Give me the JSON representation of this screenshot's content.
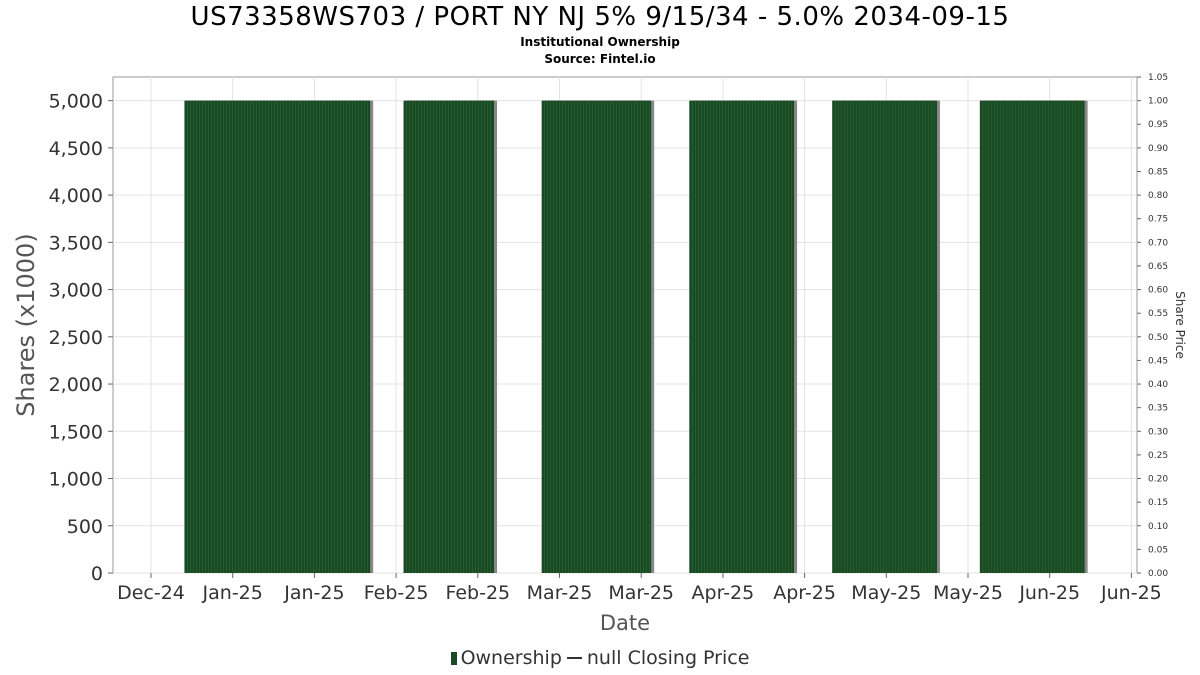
{
  "title": "US73358WS703 / PORT NY NJ 5% 9/15/34 - 5.0% 2034-09-15",
  "subtitle1": "Institutional Ownership",
  "subtitle2": "Source: Fintel.io",
  "legend": {
    "ownership": "Ownership",
    "closing_price": "null Closing Price"
  },
  "colors": {
    "bar_fill": "#1a4a24",
    "bar_stripe": "#2e6a38",
    "bar_shadow": "#888888",
    "grid": "#e3e3e3"
  },
  "chart_data": {
    "type": "bar",
    "xlabel": "Date",
    "ylabel": "Shares (x1000)",
    "y2label": "Share Price",
    "ylim": [
      0,
      5250
    ],
    "y2lim": [
      0,
      1.05
    ],
    "grid": true,
    "legend_position": "bottom",
    "x_ticks": [
      "Dec-24",
      "Jan-25",
      "Jan-25",
      "Feb-25",
      "Feb-25",
      "Mar-25",
      "Mar-25",
      "Apr-25",
      "Apr-25",
      "May-25",
      "May-25",
      "Jun-25",
      "Jun-25"
    ],
    "y_ticks": [
      "0",
      "500",
      "1,000",
      "1,500",
      "2,000",
      "2,500",
      "3,000",
      "3,500",
      "4,000",
      "4,500",
      "5,000"
    ],
    "y2_ticks": [
      "0.00",
      "0.05",
      "0.10",
      "0.15",
      "0.20",
      "0.25",
      "0.30",
      "0.35",
      "0.40",
      "0.45",
      "0.50",
      "0.55",
      "0.60",
      "0.65",
      "0.70",
      "0.75",
      "0.80",
      "0.85",
      "0.90",
      "0.95",
      "1.00",
      "1.05"
    ],
    "series": [
      {
        "name": "Ownership",
        "bars": [
          {
            "start": "2024-12-16",
            "end": "2025-01-24",
            "value": 5000
          },
          {
            "start": "2025-01-31",
            "end": "2025-02-19",
            "value": 5000
          },
          {
            "start": "2025-03-01",
            "end": "2025-03-24",
            "value": 5000
          },
          {
            "start": "2025-04-01",
            "end": "2025-04-23",
            "value": 5000
          },
          {
            "start": "2025-05-01",
            "end": "2025-05-23",
            "value": 5000
          },
          {
            "start": "2025-06-01",
            "end": "2025-06-23",
            "value": 5000
          }
        ]
      },
      {
        "name": "null Closing Price",
        "values": []
      }
    ]
  }
}
